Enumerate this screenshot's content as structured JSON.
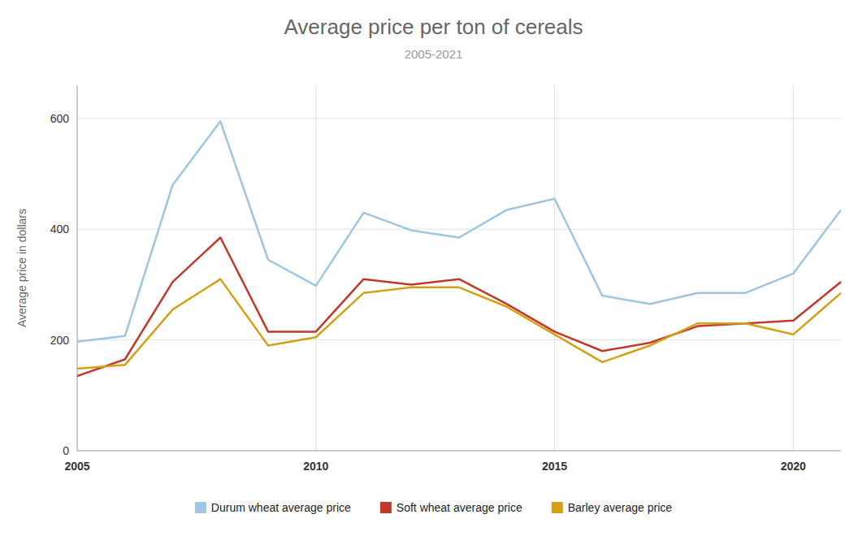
{
  "chart_data": {
    "type": "line",
    "title": "Average price per ton of cereals",
    "subtitle": "2005-2021",
    "y_label": "Average price in dollars",
    "x": [
      2005,
      2006,
      2007,
      2008,
      2009,
      2010,
      2011,
      2012,
      2013,
      2014,
      2015,
      2016,
      2017,
      2018,
      2019,
      2020,
      2021
    ],
    "series": [
      {
        "name": "Durum wheat average price",
        "color": "#9ec6e0",
        "values": [
          197,
          207,
          480,
          595,
          345,
          298,
          430,
          398,
          385,
          435,
          455,
          280,
          265,
          285,
          285,
          320,
          435
        ]
      },
      {
        "name": "Soft wheat average price",
        "color": "#c0392b",
        "values": [
          135,
          165,
          305,
          385,
          215,
          215,
          310,
          300,
          310,
          265,
          215,
          180,
          195,
          225,
          230,
          235,
          305
        ]
      },
      {
        "name": "Barley average price",
        "color": "#d4a017",
        "values": [
          148,
          155,
          255,
          310,
          190,
          205,
          285,
          295,
          295,
          260,
          210,
          160,
          190,
          230,
          230,
          210,
          285
        ]
      }
    ],
    "xlim": [
      2005,
      2021
    ],
    "xticks": [
      2005,
      2010,
      2015,
      2020
    ],
    "ylim": [
      0,
      660
    ],
    "yticks": [
      0,
      200,
      400,
      600
    ],
    "grid": true,
    "legend": "bottom"
  }
}
